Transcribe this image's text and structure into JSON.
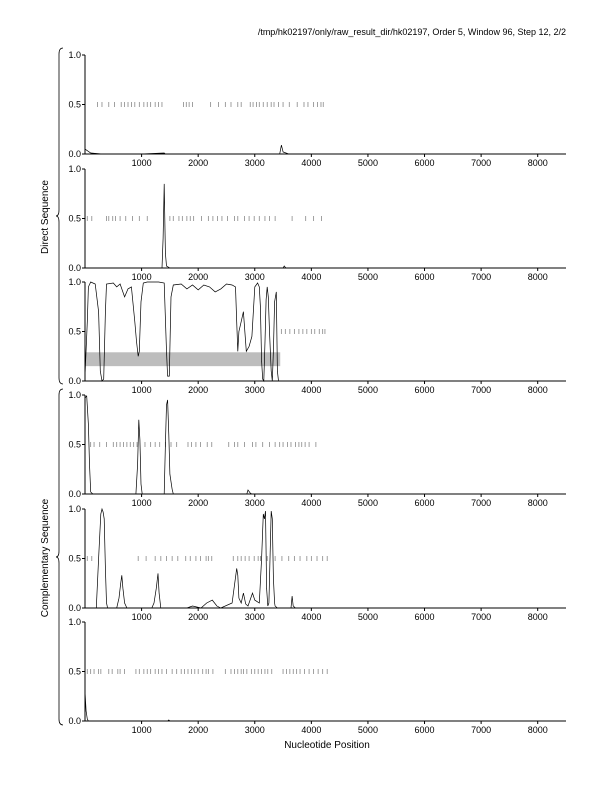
{
  "header": {
    "title": "/tmp/hk02197/only/raw_result_dir/hk02197, Order 5, Window 96, Step 12, 2/2"
  },
  "group_labels": {
    "direct": "Direct Sequence",
    "complementary": "Complementary Sequence"
  },
  "colors": {
    "line": "#000000",
    "highlight": "#bdbdbd",
    "marker": "#888888"
  },
  "chart_data": {
    "type": "line",
    "xlabel": "Nucleotide Position",
    "xlim": [
      0,
      8500
    ],
    "ylim": [
      0,
      1
    ],
    "x_ticks": [
      1000,
      2000,
      3000,
      4000,
      5000,
      6000,
      7000,
      8000
    ],
    "y_ticks": [
      "0.0",
      "0.5",
      "1.0"
    ],
    "panels": [
      {
        "group": "direct",
        "points": [
          [
            0,
            0.05
          ],
          [
            100,
            0.01
          ],
          [
            300,
            0
          ],
          [
            1000,
            0
          ],
          [
            1400,
            0.01
          ],
          [
            1420,
            0
          ],
          [
            2400,
            0
          ],
          [
            3440,
            0
          ],
          [
            3470,
            0.09
          ],
          [
            3500,
            0.02
          ],
          [
            3600,
            0
          ],
          [
            4200,
            0
          ],
          [
            8500,
            0
          ]
        ],
        "markers": {
          "y": 0.5,
          "x": [
            220,
            300,
            420,
            520,
            640,
            700,
            760,
            820,
            880,
            960,
            1040,
            1100,
            1160,
            1240,
            1300,
            1360,
            1740,
            1790,
            1840,
            1900,
            2220,
            2360,
            2480,
            2580,
            2700,
            2760,
            2920,
            2970,
            3030,
            3080,
            3150,
            3220,
            3290,
            3340,
            3420,
            3500,
            3610,
            3750,
            3870,
            3940,
            4040,
            4110,
            4170,
            4210
          ]
        }
      },
      {
        "group": "direct",
        "points": [
          [
            0,
            0
          ],
          [
            1360,
            0
          ],
          [
            1380,
            0.3
          ],
          [
            1400,
            0.85
          ],
          [
            1410,
            0.5
          ],
          [
            1420,
            0.15
          ],
          [
            1440,
            0.02
          ],
          [
            1500,
            0
          ],
          [
            3500,
            0
          ],
          [
            3520,
            0.02
          ],
          [
            3550,
            0
          ],
          [
            8500,
            0
          ]
        ],
        "markers": {
          "y": 0.5,
          "x": [
            40,
            120,
            380,
            420,
            490,
            540,
            620,
            720,
            840,
            960,
            1100,
            1500,
            1560,
            1660,
            1720,
            1800,
            1860,
            1920,
            2060,
            2180,
            2260,
            2340,
            2420,
            2520,
            2640,
            2700,
            2820,
            2900,
            2990,
            3080,
            3180,
            3260,
            3360,
            3660,
            3900,
            4040,
            4180
          ]
        }
      },
      {
        "group": "centre",
        "highlight": {
          "x0": 0,
          "x1": 3450,
          "y0": 0.15,
          "y1": 0.29
        },
        "points": [
          [
            0,
            0.05
          ],
          [
            40,
            0.6
          ],
          [
            60,
            0.95
          ],
          [
            100,
            1
          ],
          [
            180,
            0.98
          ],
          [
            240,
            0.7
          ],
          [
            270,
            0.1
          ],
          [
            300,
            0
          ],
          [
            330,
            0.02
          ],
          [
            360,
            0.7
          ],
          [
            380,
            0.98
          ],
          [
            500,
            0.99
          ],
          [
            560,
            0.95
          ],
          [
            620,
            0.98
          ],
          [
            700,
            0.85
          ],
          [
            760,
            0.93
          ],
          [
            820,
            0.95
          ],
          [
            880,
            0.6
          ],
          [
            910,
            0.4
          ],
          [
            940,
            0.25
          ],
          [
            960,
            0.3
          ],
          [
            990,
            0.8
          ],
          [
            1030,
            0.99
          ],
          [
            1100,
            1
          ],
          [
            1200,
            1
          ],
          [
            1300,
            1
          ],
          [
            1400,
            0.99
          ],
          [
            1440,
            0.3
          ],
          [
            1460,
            0.05
          ],
          [
            1490,
            0.05
          ],
          [
            1520,
            0.85
          ],
          [
            1560,
            0.97
          ],
          [
            1700,
            0.98
          ],
          [
            1800,
            0.93
          ],
          [
            1900,
            0.97
          ],
          [
            2000,
            0.92
          ],
          [
            2100,
            0.97
          ],
          [
            2200,
            0.95
          ],
          [
            2300,
            0.9
          ],
          [
            2400,
            0.93
          ],
          [
            2500,
            0.98
          ],
          [
            2600,
            0.97
          ],
          [
            2660,
            0.95
          ],
          [
            2680,
            0.6
          ],
          [
            2700,
            0.3
          ],
          [
            2720,
            0.5
          ],
          [
            2760,
            0.6
          ],
          [
            2800,
            0.7
          ],
          [
            2850,
            0.3
          ],
          [
            2900,
            0.35
          ],
          [
            2950,
            0.45
          ],
          [
            3000,
            0.95
          ],
          [
            3050,
            0.99
          ],
          [
            3080,
            0.95
          ],
          [
            3100,
            0.75
          ],
          [
            3120,
            0.2
          ],
          [
            3140,
            0.02
          ],
          [
            3160,
            0
          ],
          [
            3180,
            0.4
          ],
          [
            3200,
            0.82
          ],
          [
            3220,
            0.95
          ],
          [
            3240,
            0.85
          ],
          [
            3260,
            0.5
          ],
          [
            3290,
            0.1
          ],
          [
            3310,
            0
          ],
          [
            3330,
            0.3
          ],
          [
            3350,
            0.8
          ],
          [
            3380,
            0.9
          ],
          [
            3400,
            0.1
          ],
          [
            3420,
            0
          ],
          [
            3450,
            0
          ],
          [
            8500,
            0
          ]
        ],
        "markers": {
          "y": 0.5,
          "x": [
            3470,
            3540,
            3620,
            3700,
            3780,
            3850,
            3920,
            4000,
            4060,
            4140,
            4200,
            4240
          ]
        }
      },
      {
        "group": "complementary",
        "points": [
          [
            0,
            0.97
          ],
          [
            30,
            0.99
          ],
          [
            60,
            0.7
          ],
          [
            80,
            0.3
          ],
          [
            100,
            0.02
          ],
          [
            140,
            0
          ],
          [
            900,
            0
          ],
          [
            930,
            0.3
          ],
          [
            950,
            0.75
          ],
          [
            970,
            0.55
          ],
          [
            990,
            0.1
          ],
          [
            1010,
            0
          ],
          [
            1400,
            0
          ],
          [
            1420,
            0.5
          ],
          [
            1440,
            0.9
          ],
          [
            1460,
            0.95
          ],
          [
            1480,
            0.6
          ],
          [
            1500,
            0.2
          ],
          [
            1540,
            0.05
          ],
          [
            1560,
            0
          ],
          [
            2700,
            0
          ],
          [
            2860,
            0
          ],
          [
            2880,
            0.04
          ],
          [
            2920,
            0.01
          ],
          [
            2950,
            0
          ],
          [
            8500,
            0
          ]
        ],
        "markers": {
          "y": 0.5,
          "x": [
            100,
            160,
            260,
            380,
            500,
            560,
            620,
            680,
            740,
            800,
            860,
            920,
            1060,
            1160,
            1240,
            1320,
            1420,
            1520,
            1620,
            1820,
            1880,
            1960,
            2040,
            2160,
            2240,
            2540,
            2640,
            2700,
            2820,
            2960,
            3020,
            3140,
            3260,
            3360,
            3440,
            3500,
            3580,
            3640,
            3720,
            3780,
            3830,
            3890,
            3960,
            4080
          ]
        }
      },
      {
        "group": "complementary",
        "points": [
          [
            0,
            0
          ],
          [
            200,
            0
          ],
          [
            240,
            0.5
          ],
          [
            280,
            0.95
          ],
          [
            300,
            1
          ],
          [
            320,
            0.97
          ],
          [
            340,
            0.9
          ],
          [
            360,
            0.4
          ],
          [
            380,
            0.05
          ],
          [
            400,
            0
          ],
          [
            560,
            0
          ],
          [
            600,
            0.1
          ],
          [
            630,
            0.25
          ],
          [
            650,
            0.33
          ],
          [
            670,
            0.2
          ],
          [
            700,
            0.05
          ],
          [
            740,
            0
          ],
          [
            1180,
            0
          ],
          [
            1220,
            0.05
          ],
          [
            1260,
            0.2
          ],
          [
            1290,
            0.35
          ],
          [
            1310,
            0.15
          ],
          [
            1340,
            0
          ],
          [
            1800,
            0
          ],
          [
            1900,
            0.02
          ],
          [
            2050,
            0
          ],
          [
            2150,
            0.05
          ],
          [
            2250,
            0.08
          ],
          [
            2330,
            0.02
          ],
          [
            2400,
            0
          ],
          [
            2600,
            0.05
          ],
          [
            2680,
            0.4
          ],
          [
            2700,
            0.33
          ],
          [
            2720,
            0.1
          ],
          [
            2760,
            0.05
          ],
          [
            2800,
            0.15
          ],
          [
            2840,
            0.04
          ],
          [
            2880,
            0.02
          ],
          [
            2960,
            0.15
          ],
          [
            3000,
            0.08
          ],
          [
            3080,
            0.05
          ],
          [
            3120,
            0.5
          ],
          [
            3150,
            0.95
          ],
          [
            3170,
            0.9
          ],
          [
            3190,
            0.98
          ],
          [
            3210,
            0.2
          ],
          [
            3230,
            0.02
          ],
          [
            3250,
            0.05
          ],
          [
            3290,
            0.98
          ],
          [
            3310,
            0.9
          ],
          [
            3330,
            0.3
          ],
          [
            3350,
            0.05
          ],
          [
            3360,
            0.02
          ],
          [
            3400,
            0
          ],
          [
            3640,
            0
          ],
          [
            3660,
            0.12
          ],
          [
            3680,
            0.02
          ],
          [
            3720,
            0
          ],
          [
            8500,
            0
          ]
        ],
        "markers": {
          "y": 0.5,
          "x": [
            40,
            120,
            940,
            1080,
            1240,
            1340,
            1440,
            1540,
            1640,
            1780,
            1860,
            1960,
            2040,
            2140,
            2180,
            2240,
            2620,
            2700,
            2760,
            2830,
            2900,
            2990,
            3060,
            3100,
            3220,
            3360,
            3480,
            3600,
            3700,
            3800,
            3920,
            4000,
            4100,
            4200,
            4280
          ]
        }
      },
      {
        "group": "complementary",
        "points": [
          [
            0,
            0.3
          ],
          [
            20,
            0.1
          ],
          [
            40,
            0.02
          ],
          [
            60,
            0
          ],
          [
            1460,
            0
          ],
          [
            1480,
            0.01
          ],
          [
            1500,
            0
          ],
          [
            8500,
            0
          ]
        ],
        "markers": {
          "y": 0.5,
          "x": [
            40,
            100,
            160,
            240,
            280,
            420,
            480,
            580,
            620,
            700,
            900,
            960,
            1040,
            1100,
            1160,
            1240,
            1300,
            1360,
            1440,
            1540,
            1620,
            1700,
            1760,
            1820,
            1880,
            1940,
            2000,
            2080,
            2140,
            2180,
            2260,
            2480,
            2580,
            2640,
            2700,
            2760,
            2800,
            2860,
            2940,
            3000,
            3060,
            3120,
            3180,
            3230,
            3300,
            3500,
            3560,
            3620,
            3680,
            3740,
            3800,
            3880,
            3960,
            4040,
            4120,
            4200,
            4280
          ]
        }
      }
    ]
  }
}
